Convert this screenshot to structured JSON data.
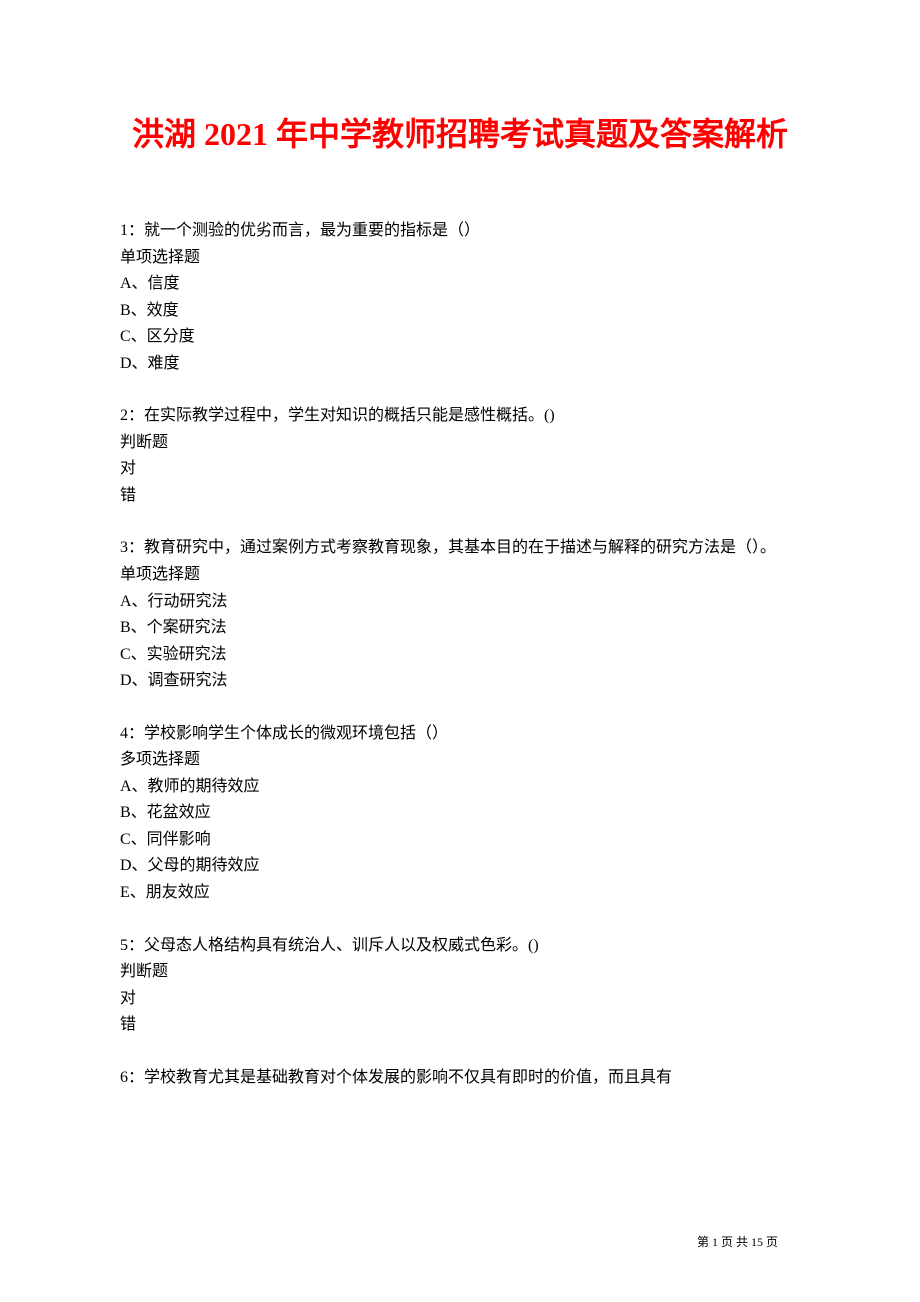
{
  "title": "洪湖 2021 年中学教师招聘考试真题及答案解析",
  "questions": [
    {
      "number": "1：",
      "text": "就一个测验的优劣而言，最为重要的指标是（）",
      "type": "单项选择题",
      "options": [
        "A、信度",
        "B、效度",
        "C、区分度",
        "D、难度"
      ]
    },
    {
      "number": " 2：",
      "text": "在实际教学过程中，学生对知识的概括只能是感性概括。()",
      "type": "判断题",
      "options": [
        "对",
        "错"
      ]
    },
    {
      "number": " 3：",
      "text": "教育研究中，通过案例方式考察教育现象，其基本目的在于描述与解释的研究方法是（）。",
      "type": "单项选择题",
      "options": [
        "A、行动研究法",
        "B、个案研究法",
        "C、实验研究法",
        "D、调查研究法"
      ]
    },
    {
      "number": " 4：",
      "text": "学校影响学生个体成长的微观环境包括（）",
      "type": "多项选择题",
      "options": [
        "A、教师的期待效应",
        "B、花盆效应",
        "C、同伴影响",
        "D、父母的期待效应",
        "E、朋友效应"
      ]
    },
    {
      "number": " 5：",
      "text": "父母态人格结构具有统治人、训斥人以及权威式色彩。()",
      "type": "判断题",
      "options": [
        "对",
        "错"
      ]
    },
    {
      "number": " 6：",
      "text": "学校教育尤其是基础教育对个体发展的影响不仅具有即时的价值，而且具有",
      "type": "",
      "options": []
    }
  ],
  "footer": "第 1 页 共 15 页"
}
